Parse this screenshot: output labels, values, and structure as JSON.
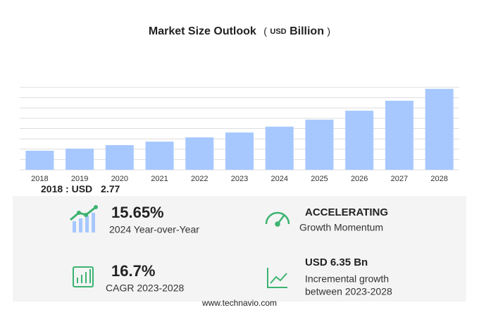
{
  "chart_data": {
    "type": "bar",
    "title": "Market Size Outlook",
    "title_unit": {
      "open": "(",
      "currency": "USD",
      "scale": "Billion",
      "close": ")"
    },
    "categories": [
      "2018",
      "2019",
      "2020",
      "2021",
      "2022",
      "2023",
      "2024",
      "2025",
      "2026",
      "2027",
      "2028"
    ],
    "values": [
      2.77,
      3.08,
      3.59,
      4.1,
      4.72,
      5.43,
      6.28,
      7.3,
      8.6,
      10.05,
      11.78
    ],
    "color": "#a6c8ff",
    "ylim": [
      0,
      12
    ],
    "yticks": [
      0,
      1.5,
      3,
      4.5,
      6,
      7.5,
      9,
      10.5,
      12
    ],
    "grid": true,
    "highlight_label": "2018 : USD"
  },
  "stats": {
    "yoy": {
      "value": "15.65%",
      "label": "2024 Year-over-Year"
    },
    "momentum": {
      "value": "ACCELERATING",
      "label": "Growth Momentum"
    },
    "cagr": {
      "value": "16.7%",
      "label": "CAGR 2023-2028"
    },
    "incremental": {
      "value": "USD 6.35 Bn",
      "label": "Incremental growth",
      "label2": "between 2023-2028"
    }
  },
  "footer": "www.technavio.com"
}
